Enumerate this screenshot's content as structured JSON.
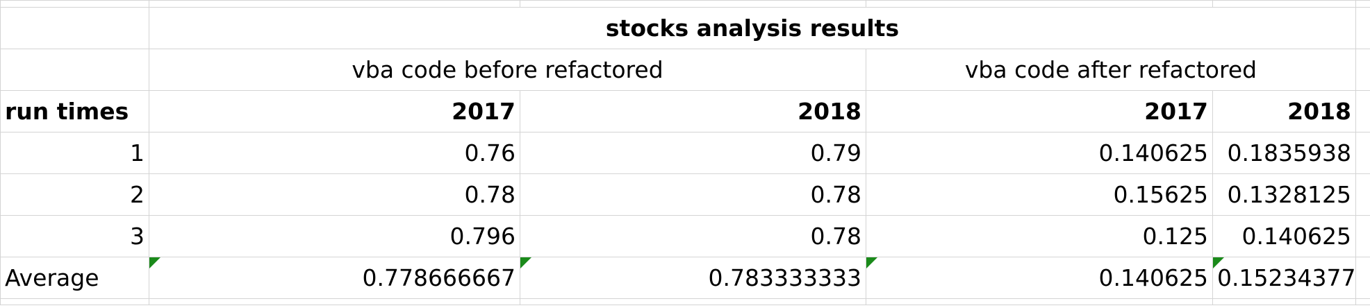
{
  "sheet": {
    "title": "stocks analysis results",
    "group_before": "vba code before refactored",
    "group_after": "vba code after refactored",
    "row_header": "run times",
    "years": [
      "2017",
      "2018",
      "2017",
      "2018"
    ],
    "rows": [
      {
        "label": "1",
        "values": [
          "0.76",
          "0.79",
          "0.140625",
          "0.1835938"
        ]
      },
      {
        "label": "2",
        "values": [
          "0.78",
          "0.78",
          "0.15625",
          "0.1328125"
        ]
      },
      {
        "label": "3",
        "values": [
          "0.796",
          "0.78",
          "0.125",
          "0.140625"
        ]
      }
    ],
    "average": {
      "label": "Average",
      "values": [
        "0.778666667",
        "0.783333333",
        "0.140625",
        "0.15234377"
      ]
    },
    "error_flag_color": "#1a8a1a",
    "gridline_color": "#d4d4d4"
  }
}
